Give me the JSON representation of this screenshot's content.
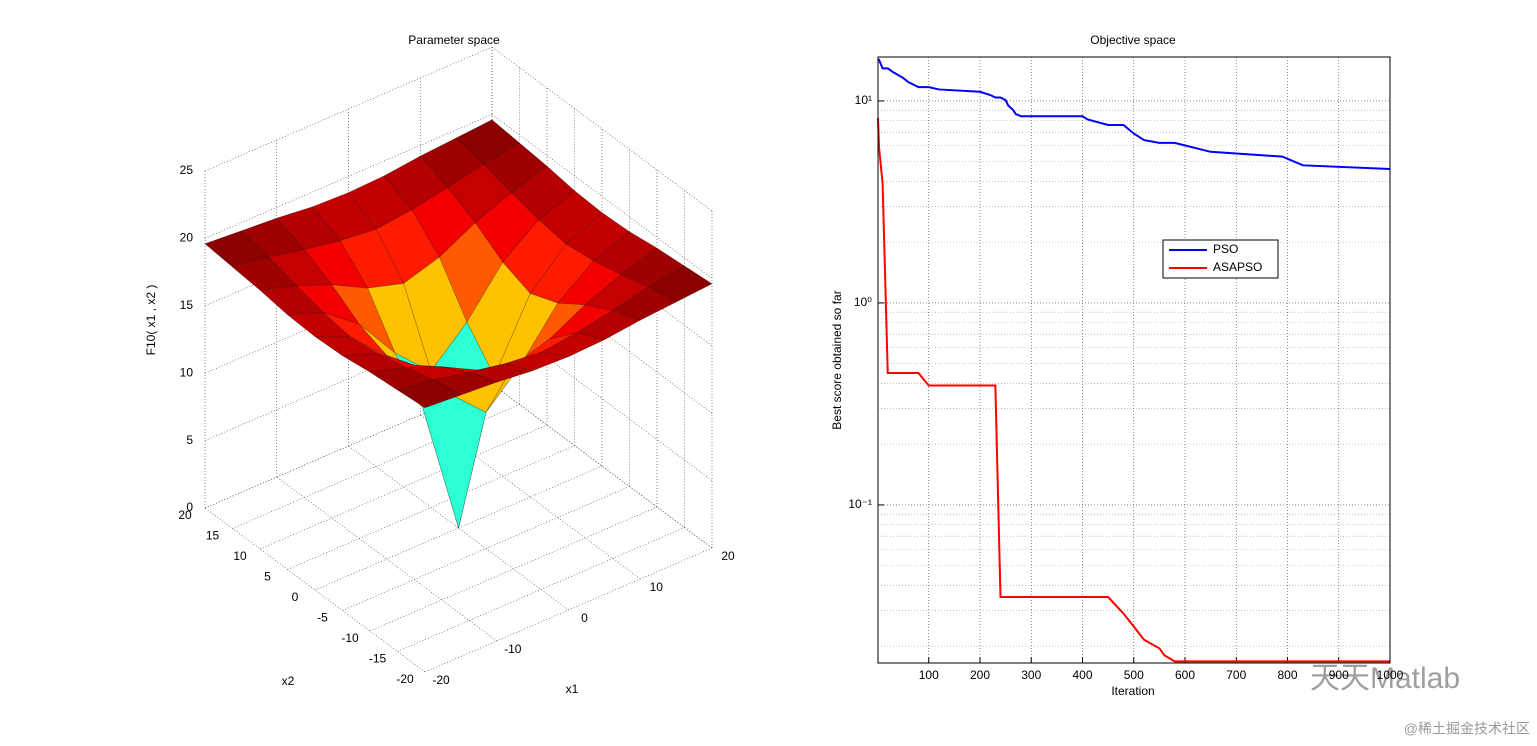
{
  "chart_data": [
    {
      "type": "surface",
      "title": "Parameter space",
      "xlabel": "x1",
      "ylabel": "x2",
      "zlabel": "F10( x1 , x2 )",
      "x": [
        -20,
        -15,
        -10,
        -5,
        0,
        5,
        10,
        15,
        20
      ],
      "y": [
        -20,
        -15,
        -10,
        -5,
        0,
        5,
        10,
        15,
        20
      ],
      "z": [
        [
          19.6,
          19.4,
          19.2,
          18.9,
          18.8,
          18.9,
          19.2,
          19.4,
          19.6
        ],
        [
          19.4,
          19.0,
          18.4,
          17.9,
          17.6,
          17.9,
          18.4,
          19.0,
          19.4
        ],
        [
          19.2,
          18.4,
          17.3,
          15.9,
          15.1,
          15.9,
          17.3,
          18.4,
          19.2
        ],
        [
          18.9,
          17.9,
          15.9,
          12.6,
          10.1,
          12.6,
          15.9,
          17.9,
          18.9
        ],
        [
          18.8,
          17.6,
          15.1,
          10.1,
          0,
          10.1,
          15.1,
          17.6,
          18.8
        ],
        [
          18.9,
          17.9,
          15.9,
          12.6,
          10.1,
          12.6,
          15.9,
          17.9,
          18.9
        ],
        [
          19.2,
          18.4,
          17.3,
          15.9,
          15.1,
          15.9,
          17.3,
          18.4,
          19.2
        ],
        [
          19.4,
          19.0,
          18.4,
          17.9,
          17.6,
          17.9,
          18.4,
          19.0,
          19.4
        ],
        [
          19.6,
          19.4,
          19.2,
          18.9,
          18.8,
          18.9,
          19.2,
          19.4,
          19.6
        ]
      ],
      "xlim": [
        -20,
        20
      ],
      "ylim": [
        -20,
        20
      ],
      "zlim": [
        0,
        25
      ],
      "xticks": [
        -20,
        -10,
        0,
        10,
        20
      ],
      "yticks": [
        -20,
        -15,
        -10,
        -5,
        0,
        5,
        10,
        15,
        20
      ],
      "zticks": [
        0,
        5,
        10,
        15,
        20,
        25
      ],
      "colormap": "jet",
      "grid": true
    },
    {
      "type": "line",
      "title": "Objective space",
      "xlabel": "Iteration",
      "ylabel": "Best score obtained so far",
      "x": [
        1,
        3,
        10,
        20,
        30,
        50,
        60,
        80,
        100,
        120,
        200,
        220,
        230,
        240,
        250,
        255,
        265,
        270,
        280,
        400,
        410,
        450,
        480,
        500,
        520,
        550,
        560,
        580,
        650,
        790,
        830,
        1000
      ],
      "series": [
        {
          "name": "PSO",
          "color": "#0000ff",
          "values": [
            16,
            16,
            14.5,
            14.5,
            13.9,
            13.0,
            12.4,
            11.7,
            11.7,
            11.4,
            11.1,
            10.7,
            10.4,
            10.4,
            10.1,
            9.5,
            9.0,
            8.6,
            8.4,
            8.4,
            8.1,
            7.6,
            7.6,
            6.9,
            6.4,
            6.2,
            6.2,
            6.2,
            5.6,
            5.3,
            4.8,
            4.6
          ]
        },
        {
          "name": "ASAPSO",
          "color": "#ff0000",
          "values": [
            8.2,
            5.9,
            3.9,
            0.45,
            0.45,
            0.45,
            0.45,
            0.45,
            0.39,
            0.39,
            0.39,
            0.39,
            0.39,
            0.035,
            0.035,
            0.035,
            0.035,
            0.035,
            0.035,
            0.035,
            0.035,
            0.035,
            0.029,
            0.025,
            0.0215,
            0.0195,
            0.018,
            0.0168,
            0.0168,
            0.0168,
            0.0168,
            0.0168
          ]
        }
      ],
      "xlim": [
        1,
        1000
      ],
      "ylim": [
        0.0165,
        16.5
      ],
      "xticks": [
        100,
        200,
        300,
        400,
        500,
        600,
        700,
        800,
        900,
        1000
      ],
      "yticks": [
        {
          "value": 0.1,
          "label": "10⁻¹"
        },
        {
          "value": 1,
          "label": "10⁰"
        },
        {
          "value": 10,
          "label": "10¹"
        }
      ],
      "log_y": true,
      "grid": true,
      "minor_grid": true,
      "legend": "upper right"
    }
  ],
  "watermark": {
    "logo": "天天Matlab",
    "site": "@稀土掘金技术社区"
  }
}
